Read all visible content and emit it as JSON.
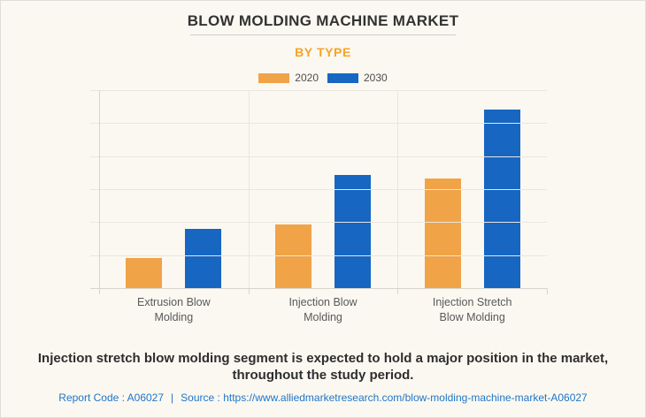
{
  "header": {
    "title": "BLOW MOLDING MACHINE MARKET",
    "subtitle": "BY TYPE"
  },
  "legend": [
    {
      "label": "2020",
      "color": "#F0A347"
    },
    {
      "label": "2030",
      "color": "#1666C2"
    }
  ],
  "chart_data": {
    "type": "bar",
    "title": "BLOW MOLDING MACHINE MARKET",
    "subtitle": "BY TYPE",
    "categories": [
      "Extrusion Blow Molding",
      "Injection Blow Molding",
      "Injection Stretch Blow Molding"
    ],
    "categories_display": [
      [
        "Extrusion Blow",
        "Molding"
      ],
      [
        "Injection Blow",
        "Molding"
      ],
      [
        "Injection Stretch",
        "Blow Molding"
      ]
    ],
    "series": [
      {
        "name": "2020",
        "color": "#F0A347",
        "values": [
          0.92,
          1.93,
          3.33
        ]
      },
      {
        "name": "2030",
        "color": "#1666C2",
        "values": [
          1.8,
          3.43,
          5.42
        ]
      }
    ],
    "xlabel": "",
    "ylabel": "",
    "ylim": [
      0,
      6
    ],
    "gridline_step": 1,
    "y_tick_labels_visible": false,
    "grid": true,
    "legend_position": "top"
  },
  "message": {
    "line1": "Injection stretch blow molding segment is expected to hold a major position in the market,",
    "line2": "throughout the study period."
  },
  "footer": {
    "report_code": "Report Code : A06027",
    "separator": "|",
    "source_label": "Source :",
    "source_url": "https://www.alliedmarketresearch.com/blow-molding-machine-market-A06027"
  },
  "colors": {
    "background": "#FBF8F1",
    "series_2020": "#F0A347",
    "series_2030": "#1666C2",
    "subtitle_orange": "#F7A327",
    "footer_link_blue": "#1E76C8"
  }
}
